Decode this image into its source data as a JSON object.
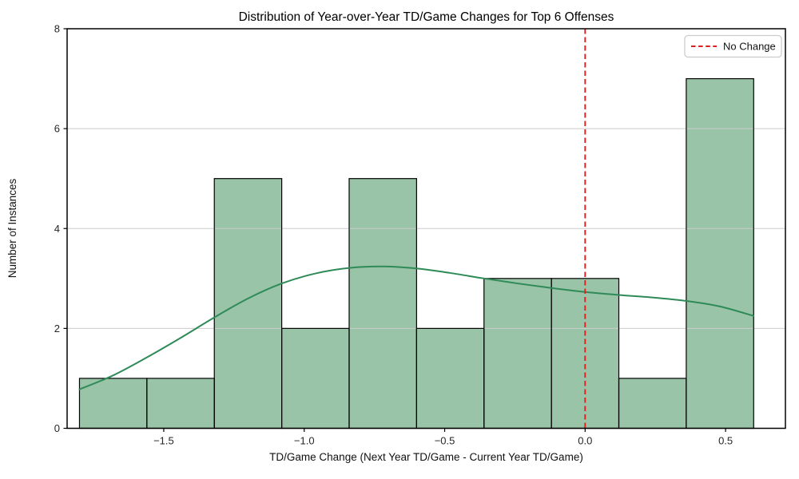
{
  "chart_data": {
    "type": "bar",
    "subtype": "histogram_with_kde",
    "title": "Distribution of Year-over-Year TD/Game Changes for Top 6 Offenses",
    "xlabel": "TD/Game Change (Next Year TD/Game - Current Year TD/Game)",
    "ylabel": "Number of Instances",
    "bin_edges": [
      -1.8,
      -1.56,
      -1.32,
      -1.08,
      -0.84,
      -0.6,
      -0.36,
      -0.12,
      0.12,
      0.36,
      0.6
    ],
    "counts": [
      1,
      1,
      5,
      2,
      5,
      2,
      3,
      3,
      1,
      7
    ],
    "kde_line": {
      "name": "KDE",
      "x": [
        -1.8,
        -1.68,
        -1.56,
        -1.44,
        -1.32,
        -1.2,
        -1.08,
        -0.96,
        -0.84,
        -0.72,
        -0.6,
        -0.48,
        -0.36,
        -0.24,
        -0.12,
        0.0,
        0.12,
        0.24,
        0.36,
        0.48,
        0.6
      ],
      "y": [
        0.78,
        1.06,
        1.42,
        1.81,
        2.22,
        2.6,
        2.9,
        3.1,
        3.21,
        3.24,
        3.2,
        3.11,
        3.0,
        2.9,
        2.81,
        2.73,
        2.67,
        2.62,
        2.55,
        2.44,
        2.25
      ]
    },
    "vline": {
      "x": 0.0,
      "label": "No Change",
      "style": "dashed",
      "color": "#e01f1f"
    },
    "xticks": [
      -1.5,
      -1.0,
      -0.5,
      0.0,
      0.5
    ],
    "xtick_labels": [
      "−1.5",
      "−1.0",
      "−0.5",
      "0.0",
      "0.5"
    ],
    "yticks": [
      0,
      2,
      4,
      6,
      8
    ],
    "ytick_labels": [
      "0",
      "2",
      "4",
      "6",
      "8"
    ],
    "xlim": [
      -1.844,
      0.713
    ],
    "ylim": [
      0,
      8
    ],
    "grid": "horizontal",
    "legend": {
      "position": "upper right",
      "entries": [
        {
          "label": "No Change",
          "color": "#e01f1f",
          "dash": true
        }
      ]
    },
    "colors": {
      "bar_fill": "#9ac4a8",
      "bar_edge": "#000000",
      "kde_line": "#2e8b57",
      "vline": "#e01f1f",
      "grid": "#cccccc",
      "spine": "#000000",
      "background": "#ffffff"
    }
  }
}
